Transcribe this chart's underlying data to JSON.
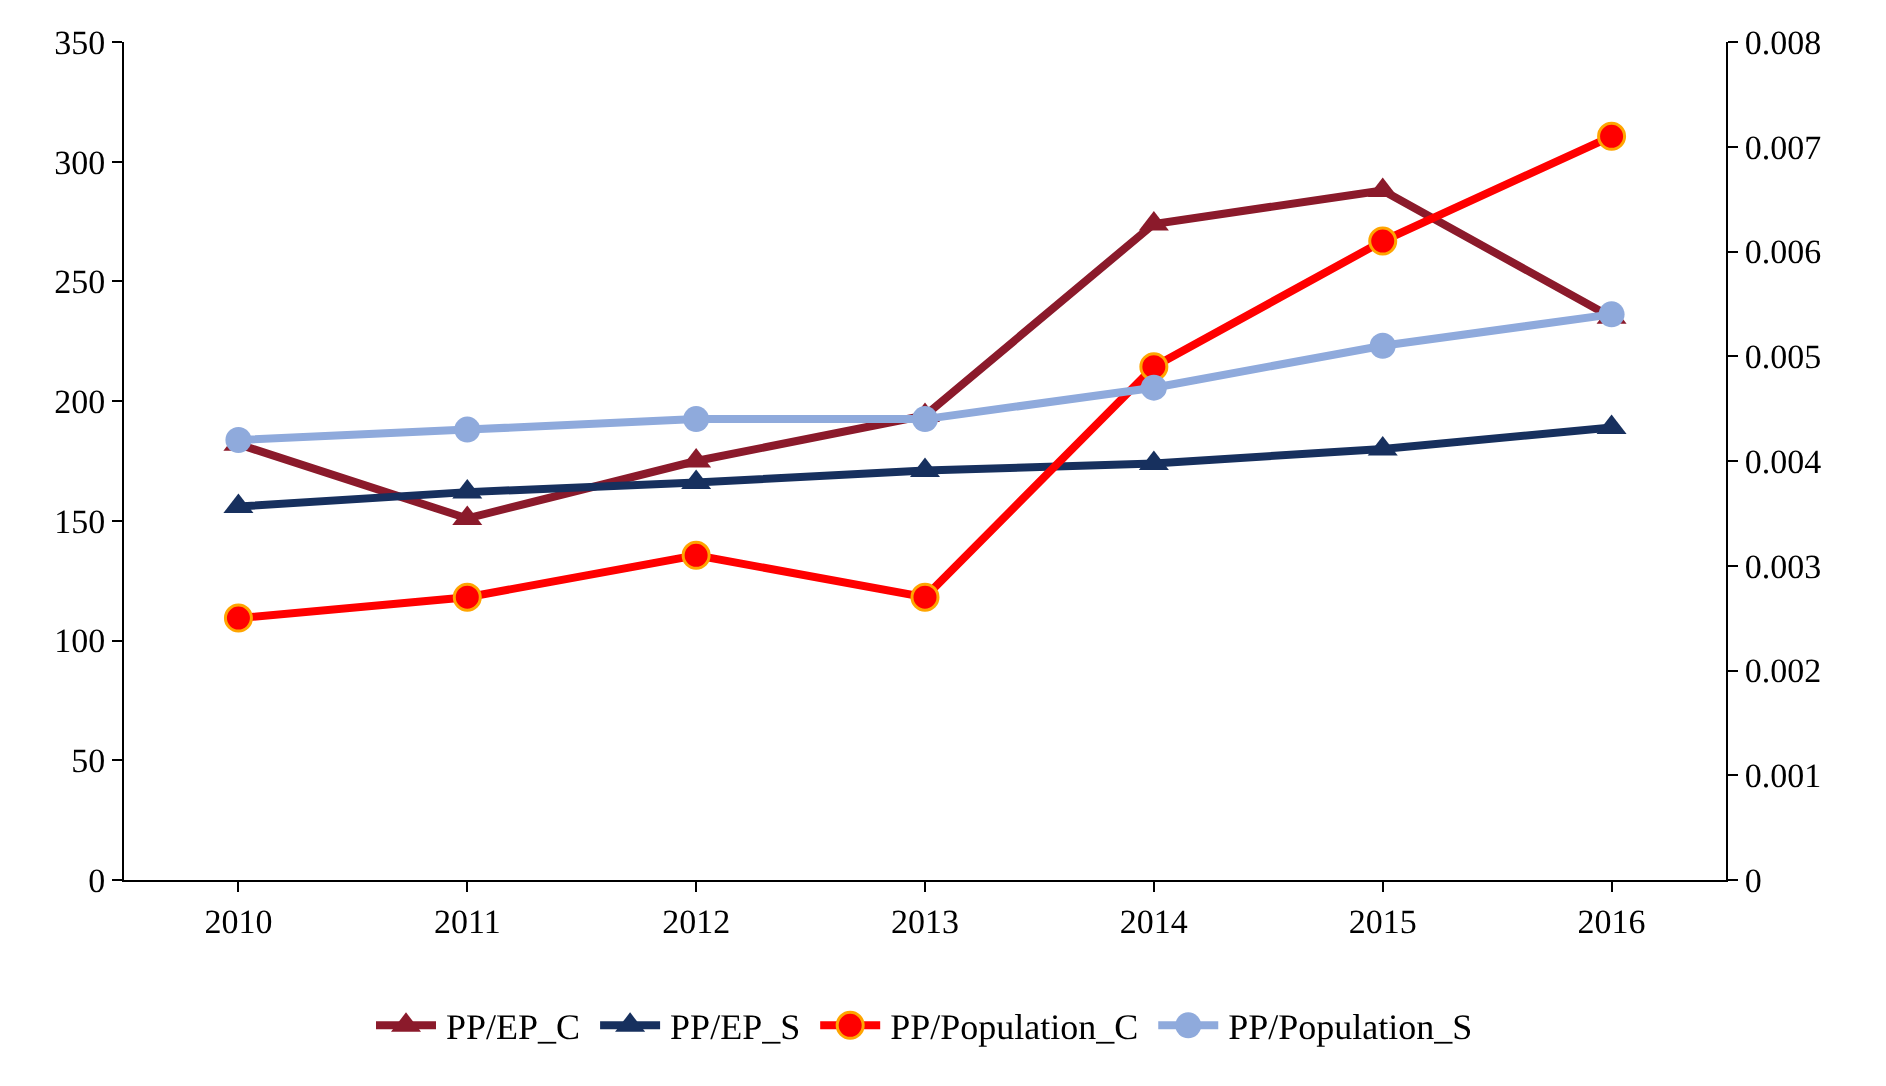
{
  "chart_data": {
    "type": "line",
    "categories": [
      "2010",
      "2011",
      "2012",
      "2013",
      "2014",
      "2015",
      "2016"
    ],
    "ylim": [
      0,
      350
    ],
    "yticks": [
      0,
      50,
      100,
      150,
      200,
      250,
      300,
      350
    ],
    "y2lim": [
      0,
      0.008
    ],
    "y2ticks": [
      0,
      0.001,
      0.002,
      0.003,
      0.004,
      0.005,
      0.006,
      0.007,
      0.008
    ],
    "legend": "bottom",
    "series": [
      {
        "name": "PP/EP_C",
        "color": "#8b1a2b",
        "marker": "triangle",
        "values": [
          182,
          151,
          175,
          194,
          274,
          288,
          235
        ]
      },
      {
        "name": "PP/EP_S",
        "color": "#17305e",
        "marker": "triangle",
        "values": [
          156,
          162,
          166,
          171,
          174,
          180,
          189
        ]
      },
      {
        "name": "PP/Population_C",
        "color": "#ff0000",
        "marker": "circle",
        "axis": "y2",
        "values": [
          0.0025,
          0.0027,
          0.0031,
          0.0027,
          0.0049,
          0.0061,
          0.0071
        ]
      },
      {
        "name": "PP/Population_S",
        "color": "#8faadc",
        "marker": "circle",
        "axis": "y2",
        "values": [
          0.0042,
          0.0043,
          0.0044,
          0.0044,
          0.0047,
          0.0051,
          0.0054
        ]
      }
    ]
  }
}
